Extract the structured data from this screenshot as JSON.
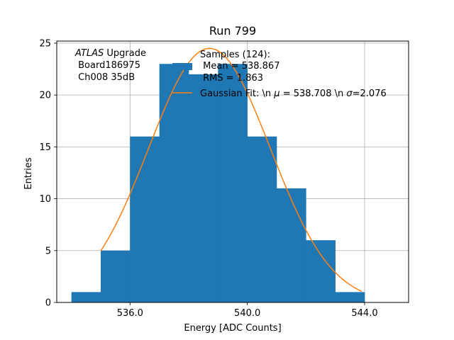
{
  "chart_data": {
    "type": "bar",
    "title": "Run 799",
    "xlabel": "Energy [ADC Counts]",
    "ylabel": "Entries",
    "xlim": [
      533.5,
      545.5
    ],
    "ylim": [
      0,
      25.2
    ],
    "grid": true,
    "x_ticks": [
      536,
      540,
      544
    ],
    "x_tick_labels": [
      "536.0",
      "540.0",
      "544.0"
    ],
    "y_ticks": [
      0,
      5,
      10,
      15,
      20,
      25
    ],
    "y_tick_labels": [
      "0",
      "5",
      "10",
      "15",
      "20",
      "25"
    ],
    "bin_edges": [
      534,
      535,
      536,
      537,
      538,
      539,
      540,
      541,
      542,
      543,
      544
    ],
    "values": [
      1,
      5,
      16,
      23,
      22,
      23,
      16,
      11,
      6,
      1
    ],
    "annotation": {
      "line1_italic": "ATLAS",
      "line1_rest": " Upgrade",
      "line2": " Board186975",
      "line3": " Ch008 35dB"
    },
    "legend": {
      "position": "upper-right",
      "samples_line1": "Samples (124):",
      "samples_line2": " Mean = 538.867",
      "samples_line3": " RMS = 1.863",
      "fit_label_a": "Gaussian Fit: \\n ",
      "fit_mu_symbol": "μ",
      "fit_label_b": " = 538.708 \\n ",
      "fit_sigma_symbol": "σ",
      "fit_label_c": "=2.076"
    },
    "fit": {
      "mu": 538.708,
      "sigma": 2.076,
      "amplitude": 24.5,
      "x_range": [
        535,
        543.9
      ]
    },
    "colors": {
      "bars": "#1f77b4",
      "fit": "#ff7f0e",
      "grid": "#b0b0b0"
    }
  }
}
